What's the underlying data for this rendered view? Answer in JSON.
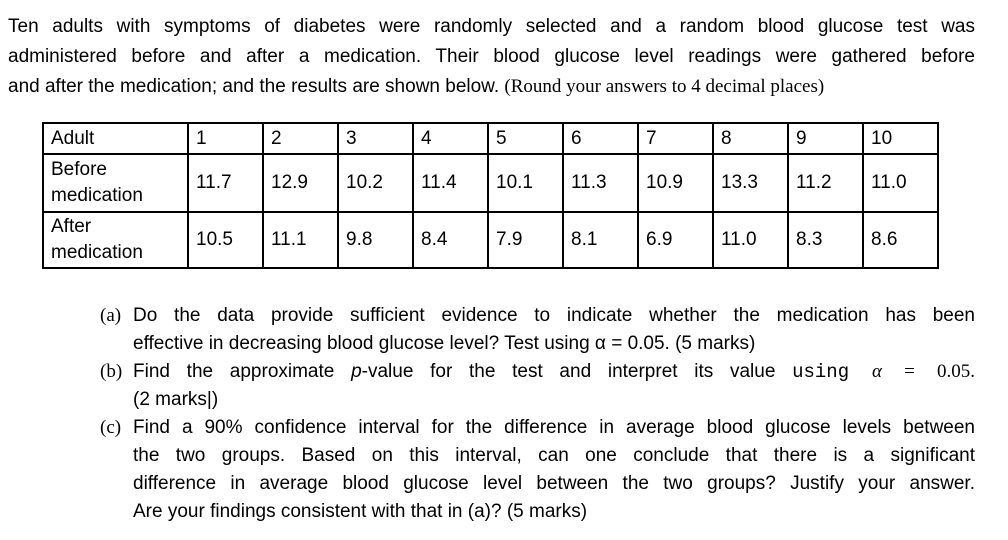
{
  "colors": {
    "background": "#ffffff",
    "text": "#000000",
    "table_border": "#000000"
  },
  "intro": {
    "line1": "Ten adults with symptoms of diabetes were randomly selected and a random blood glucose test was",
    "line2": "administered before and after a medication. Their blood glucose level readings were gathered before",
    "line3_sans": "and after the medication; and the results are shown below. ",
    "line3_serif": "(Round your answers to 4 decimal places)"
  },
  "table": {
    "header": [
      "Adult",
      "1",
      "2",
      "3",
      "4",
      "5",
      "6",
      "7",
      "8",
      "9",
      "10"
    ],
    "rows": [
      {
        "label": "Before medication",
        "values": [
          "11.7",
          "12.9",
          "10.2",
          "11.4",
          "10.1",
          "11.3",
          "10.9",
          "13.3",
          "11.2",
          "11.0"
        ]
      },
      {
        "label": "After medication",
        "values": [
          "10.5",
          "11.1",
          "9.8",
          "8.4",
          "7.9",
          "8.1",
          "6.9",
          "11.0",
          "8.3",
          "8.6"
        ]
      }
    ]
  },
  "questions": {
    "a": {
      "marker": "(a)",
      "line1": "Do the data provide sufficient evidence to indicate whether the medication has been",
      "line2": "effective in decreasing blood glucose level? Test using α = 0.05. (5 marks)"
    },
    "b": {
      "marker": "(b)",
      "seg_intro": "Find the approximate ",
      "seg_p": "p",
      "seg_after_p": "-value for the test and interpret its value ",
      "seg_using": "using ",
      "seg_alpha": "α",
      "seg_value": " = 0.05.",
      "line2": "(2 marks|)"
    },
    "c": {
      "marker": "(c)",
      "lines": [
        "Find a 90% confidence interval for the difference in average blood glucose levels between",
        "the two groups. Based on this interval, can one conclude that there is a significant",
        "difference in average blood glucose level between the two groups? Justify your answer.",
        "Are your findings consistent with that in (a)? (5 marks)"
      ]
    }
  }
}
